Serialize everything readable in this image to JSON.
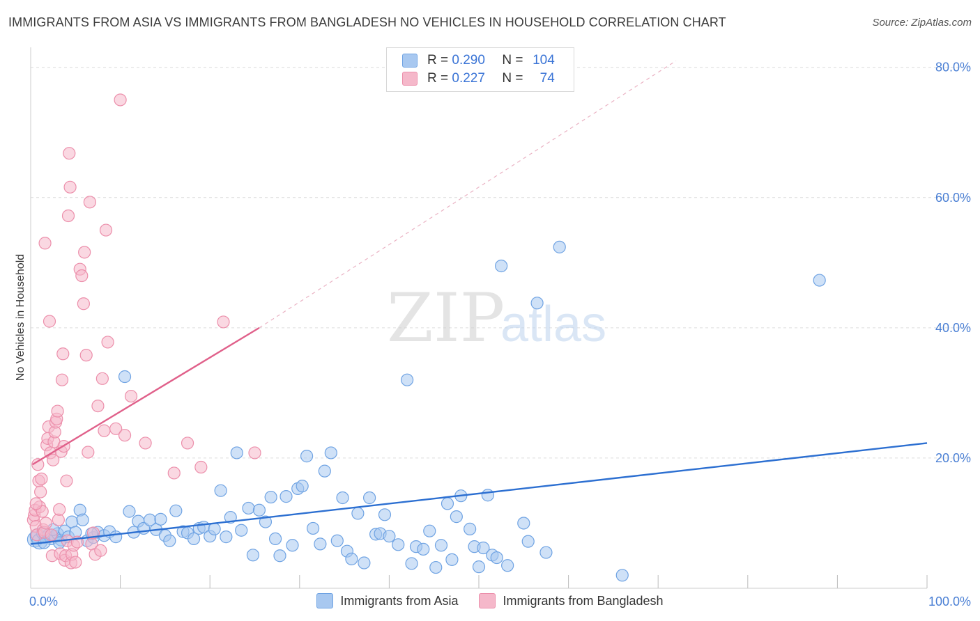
{
  "title": "IMMIGRANTS FROM ASIA VS IMMIGRANTS FROM BANGLADESH NO VEHICLES IN HOUSEHOLD CORRELATION CHART",
  "source": "Source: ZipAtlas.com",
  "watermark": {
    "zip": "ZIP",
    "atlas": "atlas"
  },
  "legend": {
    "rows": [
      {
        "r_label": "R =",
        "r_value": "0.290",
        "n_label": "N =",
        "n_value": "104",
        "color": "#a8c8f0"
      },
      {
        "r_label": "R =",
        "r_value": "0.227",
        "n_label": "N =",
        "n_value": "74",
        "color": "#f5b8ca"
      }
    ]
  },
  "bottom_legend": [
    {
      "label": "Immigrants from Asia",
      "color": "#a8c8f0"
    },
    {
      "label": "Immigrants from Bangladesh",
      "color": "#f5b8ca"
    }
  ],
  "chart_data": {
    "type": "scatter",
    "title": "IMMIGRANTS FROM ASIA VS IMMIGRANTS FROM BANGLADESH NO VEHICLES IN HOUSEHOLD CORRELATION CHART",
    "xlabel": "",
    "ylabel": "No Vehicles in Household",
    "xlim": [
      0,
      100
    ],
    "ylim": [
      0,
      82
    ],
    "x_tick_labels": [
      "0.0%",
      "100.0%"
    ],
    "y_ticks": [
      20,
      40,
      60,
      80
    ],
    "y_tick_labels": [
      "20.0%",
      "40.0%",
      "60.0%",
      "80.0%"
    ],
    "grid": true,
    "series": [
      {
        "name": "Immigrants from Asia",
        "color": "#6fa3e3",
        "fill": "#a8c8f0",
        "trend": {
          "x": [
            0,
            100
          ],
          "y": [
            6.8,
            22.3
          ],
          "color": "#2c6fd1"
        },
        "points": [
          [
            0.5,
            7.5
          ],
          [
            0.8,
            8.0
          ],
          [
            1.0,
            7.2
          ],
          [
            1.3,
            8.5
          ],
          [
            1.6,
            7.8
          ],
          [
            2.0,
            8.2
          ],
          [
            2.3,
            7.6
          ],
          [
            2.7,
            8.0
          ],
          [
            3.0,
            8.4
          ],
          [
            3.4,
            7.4
          ],
          [
            3.8,
            8.8
          ],
          [
            4.2,
            7.9
          ],
          [
            4.6,
            10.2
          ],
          [
            5.0,
            8.6
          ],
          [
            5.5,
            12.0
          ],
          [
            5.8,
            10.5
          ],
          [
            6.3,
            7.3
          ],
          [
            7.0,
            7.8
          ],
          [
            7.5,
            8.6
          ],
          [
            8.2,
            8.1
          ],
          [
            8.8,
            8.7
          ],
          [
            9.5,
            7.9
          ],
          [
            10.5,
            32.5
          ],
          [
            11.0,
            11.8
          ],
          [
            11.5,
            8.6
          ],
          [
            12.0,
            10.3
          ],
          [
            12.6,
            9.2
          ],
          [
            13.3,
            10.5
          ],
          [
            14.0,
            9.0
          ],
          [
            14.5,
            10.6
          ],
          [
            15.0,
            8.1
          ],
          [
            15.5,
            7.3
          ],
          [
            16.2,
            11.9
          ],
          [
            17.0,
            8.7
          ],
          [
            17.5,
            8.5
          ],
          [
            18.2,
            7.6
          ],
          [
            18.8,
            9.2
          ],
          [
            19.3,
            9.4
          ],
          [
            20.0,
            8.0
          ],
          [
            20.5,
            9.1
          ],
          [
            21.2,
            15.0
          ],
          [
            21.8,
            7.9
          ],
          [
            22.3,
            10.9
          ],
          [
            23.0,
            20.8
          ],
          [
            23.5,
            8.9
          ],
          [
            24.3,
            12.3
          ],
          [
            24.8,
            5.1
          ],
          [
            25.5,
            12.0
          ],
          [
            26.2,
            10.2
          ],
          [
            26.8,
            14.0
          ],
          [
            27.3,
            7.6
          ],
          [
            27.8,
            5.0
          ],
          [
            28.5,
            14.1
          ],
          [
            29.2,
            6.6
          ],
          [
            29.8,
            15.3
          ],
          [
            30.3,
            15.7
          ],
          [
            30.8,
            20.3
          ],
          [
            31.5,
            9.2
          ],
          [
            32.3,
            6.8
          ],
          [
            32.8,
            18.0
          ],
          [
            33.5,
            20.8
          ],
          [
            34.2,
            7.3
          ],
          [
            34.8,
            13.9
          ],
          [
            35.3,
            5.7
          ],
          [
            35.8,
            4.5
          ],
          [
            36.5,
            11.5
          ],
          [
            37.2,
            3.9
          ],
          [
            37.8,
            13.9
          ],
          [
            38.5,
            8.3
          ],
          [
            39.0,
            8.4
          ],
          [
            39.5,
            11.3
          ],
          [
            40.0,
            8.0
          ],
          [
            41.0,
            6.7
          ],
          [
            42.0,
            32.0
          ],
          [
            42.5,
            3.8
          ],
          [
            43.0,
            6.4
          ],
          [
            43.8,
            6.0
          ],
          [
            44.5,
            8.8
          ],
          [
            45.2,
            3.2
          ],
          [
            45.8,
            6.6
          ],
          [
            46.5,
            13.0
          ],
          [
            47.0,
            4.4
          ],
          [
            47.5,
            11.0
          ],
          [
            48.0,
            14.2
          ],
          [
            49.0,
            9.1
          ],
          [
            49.5,
            6.4
          ],
          [
            50.0,
            3.3
          ],
          [
            50.5,
            6.2
          ],
          [
            51.0,
            14.3
          ],
          [
            51.5,
            5.1
          ],
          [
            52.0,
            4.7
          ],
          [
            52.5,
            49.5
          ],
          [
            53.2,
            3.5
          ],
          [
            55.0,
            10.0
          ],
          [
            55.5,
            7.2
          ],
          [
            56.5,
            43.8
          ],
          [
            57.5,
            5.5
          ],
          [
            59.0,
            52.4
          ],
          [
            66.0,
            2.0
          ],
          [
            88.0,
            47.3
          ],
          [
            1.5,
            7.0
          ],
          [
            2.5,
            9.0
          ],
          [
            3.2,
            7.0
          ],
          [
            6.8,
            8.4
          ]
        ]
      },
      {
        "name": "Immigrants from Bangladesh",
        "color": "#ec8fab",
        "fill": "#f5b8ca",
        "trend": {
          "x": [
            0.2,
            25.5
          ],
          "y": [
            19.0,
            40.0
          ],
          "color": "#e0608a",
          "dashed_extension": {
            "x": [
              25.5,
              72.0
            ],
            "y": [
              40.0,
              81.0
            ]
          }
        },
        "points": [
          [
            0.3,
            10.5
          ],
          [
            0.4,
            11.2
          ],
          [
            0.5,
            12.0
          ],
          [
            0.6,
            9.5
          ],
          [
            0.7,
            8.2
          ],
          [
            0.8,
            19.0
          ],
          [
            0.9,
            16.5
          ],
          [
            1.0,
            12.5
          ],
          [
            1.1,
            14.8
          ],
          [
            1.2,
            16.8
          ],
          [
            1.3,
            11.8
          ],
          [
            1.4,
            9.0
          ],
          [
            1.5,
            8.6
          ],
          [
            1.6,
            53.0
          ],
          [
            1.7,
            10.0
          ],
          [
            1.8,
            22.0
          ],
          [
            1.9,
            23.0
          ],
          [
            2.0,
            24.8
          ],
          [
            2.1,
            41.0
          ],
          [
            2.2,
            20.8
          ],
          [
            2.3,
            8.2
          ],
          [
            2.4,
            5.0
          ],
          [
            2.5,
            19.7
          ],
          [
            2.6,
            22.5
          ],
          [
            2.7,
            24.0
          ],
          [
            2.8,
            25.5
          ],
          [
            2.9,
            26.0
          ],
          [
            3.0,
            27.2
          ],
          [
            3.1,
            10.5
          ],
          [
            3.2,
            12.1
          ],
          [
            3.3,
            5.3
          ],
          [
            3.4,
            21.0
          ],
          [
            3.5,
            32.0
          ],
          [
            3.6,
            36.0
          ],
          [
            3.7,
            21.8
          ],
          [
            3.8,
            4.3
          ],
          [
            3.9,
            5.0
          ],
          [
            4.0,
            16.5
          ],
          [
            4.1,
            7.3
          ],
          [
            4.2,
            57.2
          ],
          [
            4.3,
            66.8
          ],
          [
            4.4,
            61.6
          ],
          [
            4.5,
            3.9
          ],
          [
            4.6,
            5.2
          ],
          [
            4.8,
            6.6
          ],
          [
            5.0,
            4.0
          ],
          [
            5.2,
            7.1
          ],
          [
            5.5,
            49.0
          ],
          [
            5.7,
            48.0
          ],
          [
            5.9,
            43.7
          ],
          [
            6.0,
            51.6
          ],
          [
            6.2,
            35.8
          ],
          [
            6.4,
            20.9
          ],
          [
            6.6,
            59.3
          ],
          [
            6.8,
            6.8
          ],
          [
            7.0,
            8.5
          ],
          [
            7.2,
            5.2
          ],
          [
            7.5,
            28.0
          ],
          [
            7.8,
            5.8
          ],
          [
            8.0,
            32.2
          ],
          [
            8.2,
            24.2
          ],
          [
            8.4,
            55.0
          ],
          [
            8.6,
            37.8
          ],
          [
            9.5,
            24.5
          ],
          [
            10.0,
            75.0
          ],
          [
            10.5,
            23.5
          ],
          [
            11.2,
            29.5
          ],
          [
            12.8,
            22.3
          ],
          [
            16.0,
            17.7
          ],
          [
            17.5,
            22.3
          ],
          [
            19.0,
            18.6
          ],
          [
            21.5,
            40.9
          ],
          [
            25.0,
            20.8
          ],
          [
            0.6,
            13.0
          ]
        ]
      }
    ]
  }
}
